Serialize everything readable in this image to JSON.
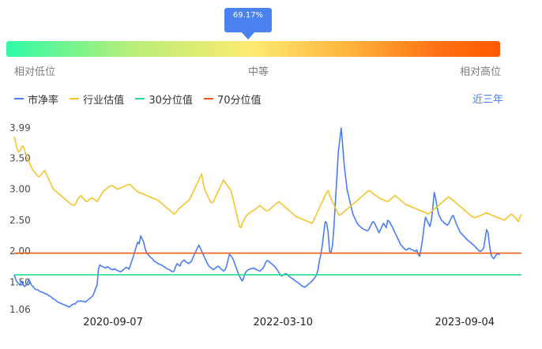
{
  "indicator": {
    "value_label": "69.17%",
    "percentile": 0.6917,
    "low_label": "相对低位",
    "mid_label": "中等",
    "high_label": "相对高位"
  },
  "legend": {
    "items": [
      {
        "label": "市净率",
        "color": "#4c7ef3"
      },
      {
        "label": "行业估值",
        "color": "#f4c52c"
      },
      {
        "label": "30分位值",
        "color": "#20e08d"
      },
      {
        "label": "70分位值",
        "color": "#f05a16"
      }
    ],
    "period_label": "近三年"
  },
  "chart_data": {
    "type": "line",
    "ylim": [
      1.06,
      3.99
    ],
    "y_ticks": [
      {
        "label": "3.99",
        "value": 3.99
      },
      {
        "label": "3.50",
        "value": 3.5
      },
      {
        "label": "3.00",
        "value": 3.0
      },
      {
        "label": "2.50",
        "value": 2.5
      },
      {
        "label": "2.00",
        "value": 2.0
      },
      {
        "label": "1.50",
        "value": 1.5
      },
      {
        "label": "1.06",
        "value": 1.06
      }
    ],
    "x_ticks": [
      "2020-09-07",
      "2022-03-10",
      "2023-09-04"
    ],
    "x_tick_index": [
      68,
      185,
      310
    ],
    "n_points": 350,
    "series": [
      {
        "name": "市净率",
        "color": "#4c7ef3",
        "values": [
          1.62,
          1.55,
          1.5,
          1.48,
          1.45,
          1.52,
          1.47,
          1.43,
          1.45,
          1.48,
          1.55,
          1.5,
          1.45,
          1.43,
          1.4,
          1.38,
          1.38,
          1.36,
          1.35,
          1.34,
          1.33,
          1.32,
          1.31,
          1.3,
          1.28,
          1.27,
          1.25,
          1.23,
          1.22,
          1.2,
          1.18,
          1.17,
          1.16,
          1.15,
          1.14,
          1.13,
          1.12,
          1.11,
          1.1,
          1.12,
          1.14,
          1.15,
          1.15,
          1.18,
          1.2,
          1.19,
          1.2,
          1.19,
          1.19,
          1.18,
          1.2,
          1.22,
          1.24,
          1.26,
          1.28,
          1.33,
          1.4,
          1.45,
          1.72,
          1.78,
          1.76,
          1.75,
          1.74,
          1.73,
          1.75,
          1.74,
          1.72,
          1.71,
          1.7,
          1.72,
          1.7,
          1.69,
          1.68,
          1.67,
          1.68,
          1.7,
          1.72,
          1.74,
          1.73,
          1.71,
          1.78,
          1.85,
          1.92,
          2.0,
          2.08,
          2.15,
          2.12,
          2.25,
          2.2,
          2.15,
          2.05,
          1.98,
          1.95,
          1.92,
          1.9,
          1.88,
          1.85,
          1.83,
          1.82,
          1.8,
          1.79,
          1.78,
          1.77,
          1.75,
          1.74,
          1.72,
          1.71,
          1.7,
          1.68,
          1.67,
          1.68,
          1.75,
          1.8,
          1.78,
          1.76,
          1.82,
          1.84,
          1.86,
          1.83,
          1.82,
          1.8,
          1.82,
          1.84,
          1.9,
          1.95,
          2.0,
          2.05,
          2.1,
          2.05,
          2.0,
          1.95,
          1.9,
          1.85,
          1.8,
          1.76,
          1.74,
          1.72,
          1.7,
          1.72,
          1.74,
          1.76,
          1.75,
          1.72,
          1.7,
          1.68,
          1.7,
          1.75,
          1.85,
          1.95,
          1.93,
          1.9,
          1.85,
          1.78,
          1.72,
          1.65,
          1.6,
          1.55,
          1.52,
          1.58,
          1.65,
          1.68,
          1.7,
          1.71,
          1.72,
          1.72,
          1.73,
          1.71,
          1.7,
          1.69,
          1.68,
          1.7,
          1.72,
          1.76,
          1.82,
          1.85,
          1.84,
          1.82,
          1.8,
          1.78,
          1.76,
          1.73,
          1.7,
          1.66,
          1.62,
          1.6,
          1.62,
          1.63,
          1.64,
          1.62,
          1.6,
          1.58,
          1.56,
          1.55,
          1.53,
          1.51,
          1.5,
          1.48,
          1.46,
          1.44,
          1.43,
          1.42,
          1.44,
          1.46,
          1.48,
          1.5,
          1.52,
          1.55,
          1.58,
          1.62,
          1.7,
          1.85,
          1.95,
          2.1,
          2.3,
          2.48,
          2.45,
          2.3,
          2.0,
          1.98,
          2.1,
          2.4,
          2.8,
          3.2,
          3.6,
          3.8,
          3.99,
          3.7,
          3.4,
          3.2,
          3.0,
          2.9,
          2.8,
          2.7,
          2.6,
          2.55,
          2.5,
          2.45,
          2.42,
          2.4,
          2.38,
          2.36,
          2.35,
          2.34,
          2.33,
          2.35,
          2.4,
          2.45,
          2.48,
          2.45,
          2.4,
          2.35,
          2.3,
          2.35,
          2.4,
          2.45,
          2.42,
          2.38,
          2.5,
          2.48,
          2.44,
          2.4,
          2.35,
          2.3,
          2.25,
          2.2,
          2.15,
          2.1,
          2.08,
          2.05,
          2.03,
          2.02,
          2.04,
          2.05,
          2.03,
          2.02,
          2.01,
          2.0,
          2.02,
          1.95,
          1.92,
          2.05,
          2.2,
          2.4,
          2.55,
          2.5,
          2.45,
          2.4,
          2.5,
          2.7,
          2.95,
          2.85,
          2.7,
          2.6,
          2.55,
          2.5,
          2.48,
          2.45,
          2.44,
          2.42,
          2.45,
          2.5,
          2.55,
          2.58,
          2.52,
          2.45,
          2.4,
          2.35,
          2.3,
          2.28,
          2.25,
          2.23,
          2.2,
          2.18,
          2.16,
          2.14,
          2.12,
          2.1,
          2.08,
          2.05,
          2.03,
          2.0,
          2.0,
          2.02,
          2.05,
          2.2,
          2.35,
          2.3,
          2.1,
          1.95,
          1.9,
          1.88,
          1.92,
          1.95,
          1.96,
          1.94
        ]
      },
      {
        "name": "行业估值",
        "color": "#f4c52c",
        "values": [
          3.85,
          3.75,
          3.65,
          3.6,
          3.62,
          3.68,
          3.7,
          3.65,
          3.55,
          3.5,
          3.45,
          3.4,
          3.35,
          3.3,
          3.28,
          3.25,
          3.22,
          3.2,
          3.22,
          3.25,
          3.28,
          3.3,
          3.25,
          3.2,
          3.15,
          3.1,
          3.05,
          3.0,
          2.98,
          2.96,
          2.94,
          2.92,
          2.9,
          2.88,
          2.86,
          2.84,
          2.82,
          2.8,
          2.78,
          2.76,
          2.75,
          2.74,
          2.76,
          2.8,
          2.85,
          2.88,
          2.9,
          2.86,
          2.84,
          2.82,
          2.8,
          2.82,
          2.84,
          2.86,
          2.85,
          2.84,
          2.82,
          2.8,
          2.84,
          2.88,
          2.92,
          2.95,
          2.98,
          3.0,
          3.02,
          3.04,
          3.05,
          3.06,
          3.05,
          3.03,
          3.02,
          3.0,
          3.01,
          3.02,
          3.03,
          3.04,
          3.05,
          3.06,
          3.07,
          3.08,
          3.07,
          3.05,
          3.02,
          3.0,
          2.98,
          2.96,
          2.95,
          2.94,
          2.93,
          2.92,
          2.91,
          2.9,
          2.89,
          2.88,
          2.87,
          2.86,
          2.85,
          2.84,
          2.83,
          2.82,
          2.8,
          2.78,
          2.76,
          2.74,
          2.72,
          2.7,
          2.68,
          2.66,
          2.64,
          2.62,
          2.6,
          2.62,
          2.65,
          2.68,
          2.7,
          2.72,
          2.74,
          2.76,
          2.78,
          2.8,
          2.82,
          2.85,
          2.9,
          2.95,
          3.0,
          3.05,
          3.1,
          3.15,
          3.2,
          3.25,
          3.1,
          3.0,
          2.95,
          2.9,
          2.85,
          2.8,
          2.78,
          2.8,
          2.85,
          2.9,
          2.95,
          3.0,
          3.05,
          3.1,
          3.15,
          3.12,
          3.08,
          3.05,
          3.02,
          2.98,
          2.9,
          2.8,
          2.7,
          2.6,
          2.5,
          2.4,
          2.38,
          2.45,
          2.5,
          2.55,
          2.58,
          2.6,
          2.62,
          2.64,
          2.65,
          2.66,
          2.68,
          2.7,
          2.72,
          2.74,
          2.72,
          2.7,
          2.68,
          2.66,
          2.65,
          2.66,
          2.68,
          2.7,
          2.72,
          2.74,
          2.76,
          2.78,
          2.8,
          2.78,
          2.76,
          2.74,
          2.72,
          2.7,
          2.68,
          2.66,
          2.64,
          2.62,
          2.6,
          2.58,
          2.56,
          2.55,
          2.54,
          2.53,
          2.52,
          2.51,
          2.5,
          2.49,
          2.48,
          2.47,
          2.46,
          2.45,
          2.5,
          2.55,
          2.6,
          2.65,
          2.7,
          2.75,
          2.8,
          2.85,
          2.9,
          2.95,
          2.98,
          2.9,
          2.85,
          2.8,
          2.75,
          2.7,
          2.65,
          2.6,
          2.58,
          2.6,
          2.62,
          2.64,
          2.66,
          2.68,
          2.7,
          2.72,
          2.74,
          2.76,
          2.78,
          2.8,
          2.82,
          2.84,
          2.86,
          2.88,
          2.9,
          2.92,
          2.94,
          2.96,
          2.98,
          2.97,
          2.95,
          2.93,
          2.91,
          2.9,
          2.88,
          2.86,
          2.85,
          2.84,
          2.83,
          2.82,
          2.81,
          2.8,
          2.82,
          2.84,
          2.86,
          2.88,
          2.9,
          2.88,
          2.86,
          2.84,
          2.82,
          2.8,
          2.78,
          2.76,
          2.75,
          2.74,
          2.73,
          2.72,
          2.71,
          2.7,
          2.69,
          2.68,
          2.67,
          2.66,
          2.65,
          2.64,
          2.63,
          2.62,
          2.61,
          2.6,
          2.62,
          2.64,
          2.66,
          2.68,
          2.7,
          2.72,
          2.74,
          2.76,
          2.78,
          2.8,
          2.82,
          2.84,
          2.86,
          2.88,
          2.86,
          2.84,
          2.82,
          2.8,
          2.78,
          2.76,
          2.74,
          2.72,
          2.7,
          2.68,
          2.66,
          2.64,
          2.62,
          2.6,
          2.58,
          2.56,
          2.55,
          2.54,
          2.55,
          2.56,
          2.57,
          2.58,
          2.59,
          2.6,
          2.61,
          2.62,
          2.61,
          2.6,
          2.59,
          2.58,
          2.57,
          2.56,
          2.55,
          2.54,
          2.53,
          2.52,
          2.51,
          2.5,
          2.52,
          2.54,
          2.56,
          2.58,
          2.6,
          2.58,
          2.56,
          2.54,
          2.5,
          2.48,
          2.55,
          2.6
        ]
      },
      {
        "name": "30分位值",
        "color": "#20e08d",
        "constant": 1.62
      },
      {
        "name": "70分位值",
        "color": "#f05a16",
        "constant": 1.97
      }
    ]
  }
}
